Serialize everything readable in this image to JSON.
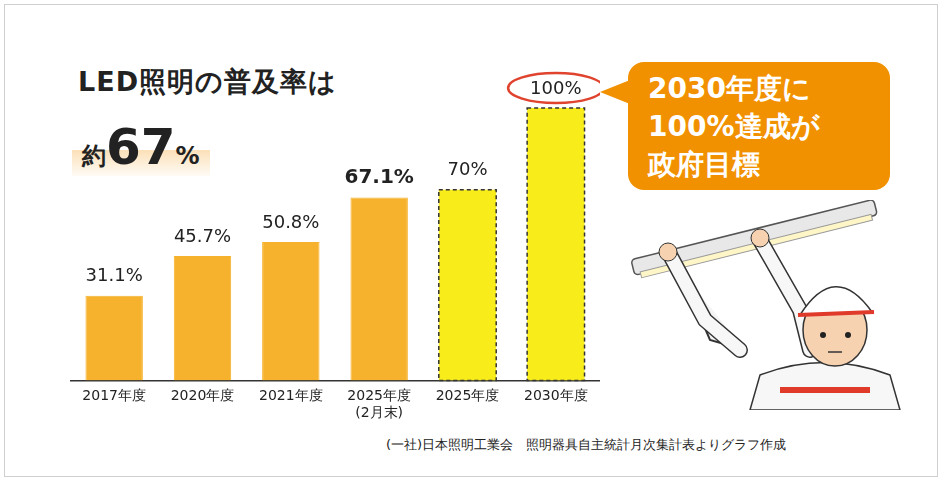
{
  "chart_data": {
    "type": "bar",
    "title": "LED照明の普及率は",
    "subtitle": "約67%",
    "annotations": [
      "2030年度に\n100%達成が\n政府目標"
    ],
    "source": "(一社)日本照明工業会　照明器具自主統計月次集計表よりグラフ作成",
    "categories": [
      "2017年度",
      "2020年度",
      "2021年度",
      "2025年度\n(2月末)",
      "2025年度",
      "2030年度"
    ],
    "values": [
      31.1,
      45.7,
      50.8,
      67.1,
      70,
      100
    ],
    "value_labels": [
      "31.1%",
      "45.7%",
      "50.8%",
      "67.1%",
      "70%",
      "100%"
    ],
    "colors": [
      "#f6b22d",
      "#f6b22d",
      "#f6b22d",
      "#f6b22d",
      "#f8ec1b",
      "#f8ec1b"
    ],
    "ylim": [
      0,
      100
    ],
    "grid": false,
    "data_labels": true,
    "tick_labels": "x"
  }
}
